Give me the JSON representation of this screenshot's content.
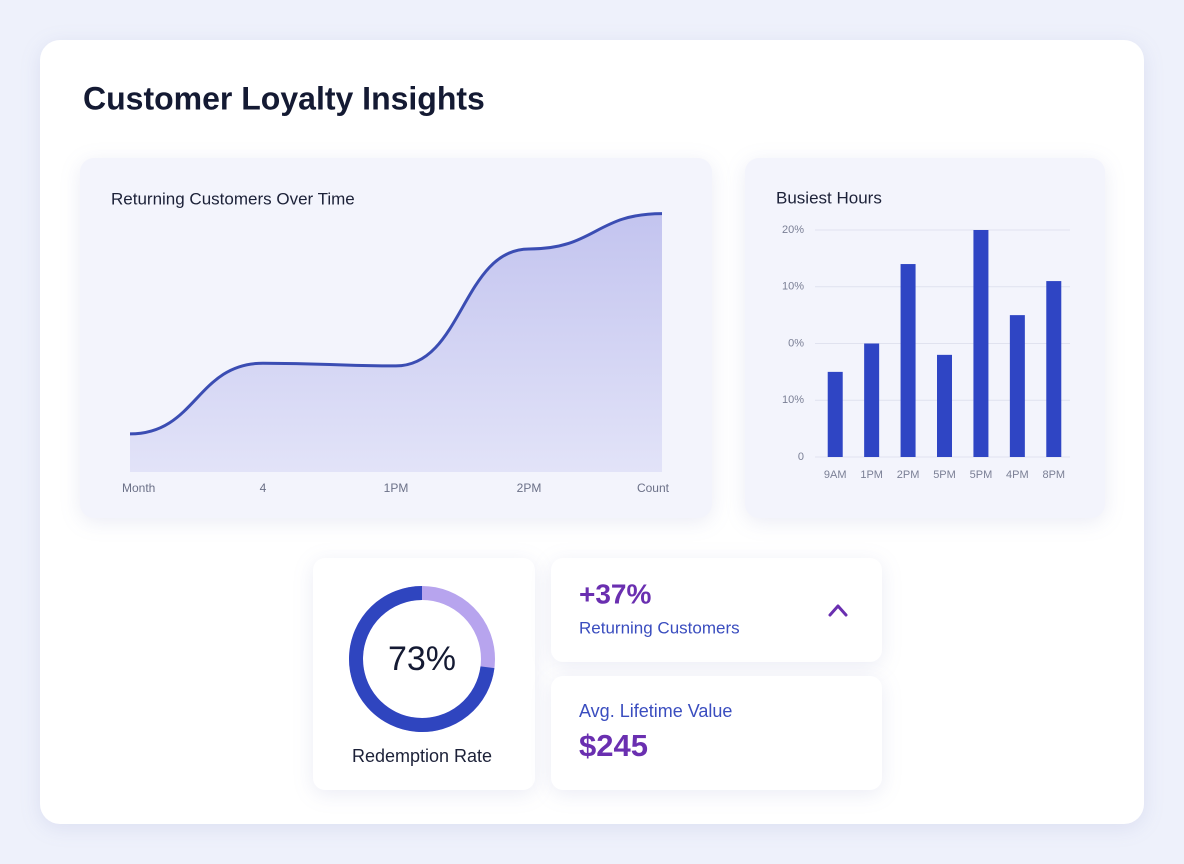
{
  "title": "Customer Loyalty Insights",
  "chart_data": [
    {
      "type": "area",
      "title": "Returning Customers Over Time",
      "categories": [
        "Month",
        "4",
        "1PM",
        "2PM",
        "Count"
      ],
      "values": [
        14,
        40,
        39,
        82,
        95
      ],
      "ylim": [
        0,
        100
      ],
      "color": "#3b4db3"
    },
    {
      "type": "bar",
      "title": "Busiest Hours",
      "categories": [
        "9AM",
        "1PM",
        "2PM",
        "5PM",
        "5PM",
        "4PM",
        "8PM"
      ],
      "values": [
        15,
        20,
        34,
        18,
        40,
        25,
        31
      ],
      "ylim": [
        0,
        40
      ],
      "yticks": [
        {
          "value": 40,
          "label": "20%"
        },
        {
          "value": 30,
          "label": "10%"
        },
        {
          "value": 20,
          "label": "0%"
        },
        {
          "value": 10,
          "label": "10%"
        },
        0
      ],
      "grid": true,
      "color": "#2f45c4"
    },
    {
      "type": "donut",
      "title": "Redemption Rate",
      "values": [
        73
      ],
      "value_labels": [
        "73%"
      ],
      "color": "#2f45bf",
      "track_color": "#b7a4ee"
    }
  ],
  "kpis": [
    {
      "value": "+37%",
      "label": "Returning Customers"
    },
    {
      "label": "Avg. Lifetime Value",
      "value": "$245"
    }
  ]
}
